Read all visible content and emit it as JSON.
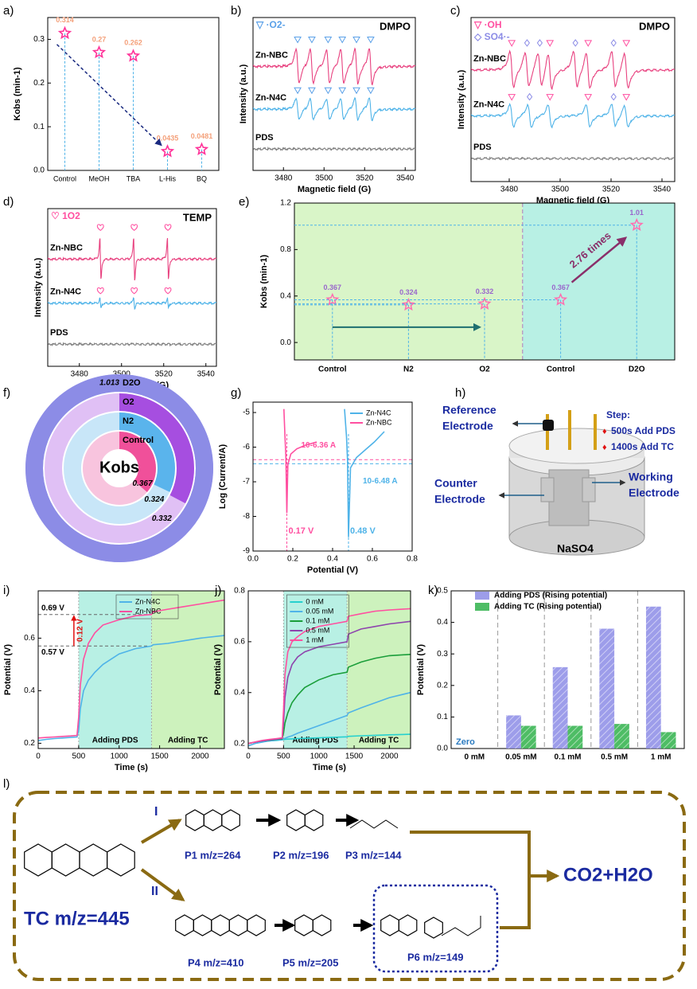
{
  "chart_data": [
    {
      "panel": "a)",
      "type": "scatter",
      "ylabel": "Kobs (min-1)",
      "categories": [
        "Control",
        "MeOH",
        "TBA",
        "L-His",
        "BQ"
      ],
      "values": [
        0.314,
        0.27,
        0.262,
        0.0435,
        0.0481
      ],
      "color": "#ff3399",
      "label_color": "#f4a07a",
      "ylim": [
        0,
        0.35
      ],
      "yticks": [
        {
          "value": 0,
          "label": "0.0"
        },
        0.1,
        0.2,
        0.3
      ]
    },
    {
      "panel": "b)",
      "type": "epr",
      "legend": [
        "▽ ·O2-"
      ],
      "tag": "DMPO",
      "marker": "triangle",
      "marker_color": "#5aa0e8",
      "xlabel": "Magnetic field (G)",
      "ylabel": "Intensity (a.u.)",
      "xlim": [
        3465,
        3545
      ],
      "xticks": [
        3480,
        3500,
        3520,
        3540
      ],
      "series": [
        {
          "name": "Zn-NBC",
          "color": "#e8417f",
          "peaks": [
            3487,
            3494,
            3502,
            3509,
            3516,
            3523
          ]
        },
        {
          "name": "Zn-N4C",
          "color": "#4fb3e8",
          "peaks": [
            3487,
            3494,
            3502,
            3509,
            3516,
            3523
          ]
        },
        {
          "name": "PDS",
          "color": "#808080",
          "peaks": []
        }
      ]
    },
    {
      "panel": "c)",
      "type": "epr",
      "legend": [
        "▽ ·OH",
        "◇ SO4·-"
      ],
      "tag": "DMPO",
      "marker": "triangle",
      "marker_color": "#ff4fa0",
      "marker2_color": "#8c8ce6",
      "xlabel": "Magnetic field (G)",
      "ylabel": "Intensity (a.u.)",
      "xlim": [
        3465,
        3545
      ],
      "xticks": [
        3480,
        3500,
        3520,
        3540
      ],
      "series": [
        {
          "name": "Zn-NBC",
          "color": "#e8417f",
          "peaks": [
            3481,
            3496,
            3511,
            3526
          ],
          "peaks2": [
            3487,
            3492,
            3506,
            3521
          ]
        },
        {
          "name": "Zn-N4C",
          "color": "#4fb3e8",
          "peaks": [
            3481,
            3496,
            3511,
            3526
          ],
          "peaks2": [
            3488,
            3521
          ]
        },
        {
          "name": "PDS",
          "color": "#808080",
          "peaks": [],
          "peaks2": []
        }
      ]
    },
    {
      "panel": "d)",
      "type": "epr",
      "legend": [
        "♡ 1O2"
      ],
      "tag": "TEMP",
      "marker": "heart",
      "marker_color": "#ff4fa0",
      "xlabel": "Magnetic field (G)",
      "ylabel": "Intensity (a.u.)",
      "xlim": [
        3465,
        3545
      ],
      "xticks": [
        3480,
        3500,
        3520,
        3540
      ],
      "series": [
        {
          "name": "Zn-NBC",
          "color": "#e8417f",
          "peaks": [
            3490,
            3506,
            3522
          ]
        },
        {
          "name": "Zn-N4C",
          "color": "#4fb3e8",
          "peaks": [
            3490,
            3506,
            3522
          ]
        },
        {
          "name": "PDS",
          "color": "#808080",
          "peaks": []
        }
      ]
    },
    {
      "panel": "e)",
      "type": "stars",
      "ylabel": "Kobs (min-1)",
      "categories": [
        "Control",
        "N2",
        "O2",
        "Control",
        "D2O"
      ],
      "values": [
        0.367,
        0.324,
        0.332,
        0.367,
        1.01
      ],
      "color": "#ff6fb0",
      "label_color": "#9966cc",
      "ylim": [
        -0.15,
        1.2
      ],
      "yticks": [
        {
          "value": 0,
          "label": "0.0"
        },
        0.4,
        0.8,
        1.2
      ],
      "annotation": "2.76 times"
    },
    {
      "panel": "f)",
      "type": "rings",
      "center": "Kobs",
      "categories": [
        "D2O",
        "O2",
        "N2",
        "Control"
      ],
      "values": [
        1.013,
        0.332,
        0.324,
        0.367
      ],
      "colors": [
        "#8c8ce6",
        "#a64ee0",
        "#5ab4ec",
        "#f0509a"
      ],
      "track_colors": [
        "#b9b9f2",
        "#e0c0f5",
        "#c8e6f8",
        "#f8c4de"
      ]
    },
    {
      "panel": "g)",
      "type": "line",
      "xlabel": "Potential (V)",
      "ylabel": "Log (Current/A)",
      "xlim": [
        0,
        0.8
      ],
      "xticks": [
        {
          "value": 0,
          "label": "0.0"
        },
        0.2,
        0.4,
        0.6,
        0.8
      ],
      "ylim": [
        -9,
        -4.7
      ],
      "yticks": [
        -9,
        -8,
        -7,
        -6,
        -5
      ],
      "legend": "top-right",
      "series": [
        {
          "name": "Zn-N4C",
          "color": "#4fb3e8",
          "x": [
            0.46,
            0.47,
            0.475,
            0.48,
            0.49,
            0.52,
            0.56,
            0.61,
            0.66
          ],
          "values": [
            -4.9,
            -5.7,
            -6.4,
            -8.6,
            -6.6,
            -6.3,
            -6.1,
            -5.85,
            -5.55
          ]
        },
        {
          "name": "Zn-NBC",
          "color": "#ff4fa0",
          "x": [
            0.155,
            0.16,
            0.165,
            0.17,
            0.175,
            0.19,
            0.22,
            0.26,
            0.32
          ],
          "values": [
            -4.9,
            -5.6,
            -6.3,
            -7.9,
            -6.5,
            -6.2,
            -6.05,
            -5.95,
            -5.85
          ]
        }
      ],
      "hlines": [
        {
          "value": -6.36,
          "label": "10-6.36 A",
          "color": "#ff4fa0"
        },
        {
          "value": -6.48,
          "label": "10-6.48 A",
          "color": "#4fb3e8"
        }
      ],
      "vlines": [
        {
          "value": 0.17,
          "label": "0.17 V",
          "color": "#ff4fa0"
        },
        {
          "value": 0.48,
          "label": "0.48 V",
          "color": "#4fb3e8"
        }
      ]
    },
    {
      "panel": "i)",
      "type": "line",
      "xlabel": "Time (s)",
      "ylabel": "Potential (V)",
      "xlim": [
        0,
        2300
      ],
      "xticks": [
        0,
        500,
        1000,
        1500,
        2000
      ],
      "ylim": [
        0.18,
        0.78
      ],
      "yticks": [
        0.2,
        0.4,
        0.6
      ],
      "legend": "top-center",
      "x": [
        0,
        100,
        200,
        300,
        400,
        480,
        500,
        520,
        560,
        620,
        700,
        800,
        1000,
        1200,
        1400,
        1420,
        1600,
        1800,
        2000,
        2300
      ],
      "regions": [
        {
          "start": 500,
          "end": 1400,
          "label": "Adding PDS",
          "color": "#b8f0e4"
        },
        {
          "start": 1400,
          "end": 2300,
          "label": "Adding TC",
          "color": "#cdf2bd"
        }
      ],
      "series": [
        {
          "name": "Zn-N4C",
          "color": "#4fb3e8",
          "values": [
            0.21,
            0.215,
            0.218,
            0.22,
            0.222,
            0.224,
            0.25,
            0.33,
            0.4,
            0.44,
            0.47,
            0.5,
            0.54,
            0.56,
            0.57,
            0.575,
            0.58,
            0.59,
            0.6,
            0.61
          ]
        },
        {
          "name": "Zn-NBC",
          "color": "#ff4fa0",
          "values": [
            0.22,
            0.222,
            0.224,
            0.226,
            0.228,
            0.23,
            0.3,
            0.42,
            0.52,
            0.58,
            0.62,
            0.65,
            0.67,
            0.685,
            0.69,
            0.7,
            0.71,
            0.72,
            0.73,
            0.745
          ]
        }
      ],
      "hlines": [
        {
          "value": 0.69,
          "label": "0.69 V",
          "color": "#666666"
        },
        {
          "value": 0.57,
          "label": "0.57 V",
          "color": "#666666"
        }
      ],
      "diff": {
        "value": 0.12,
        "label": "0.12 V"
      }
    },
    {
      "panel": "j)",
      "type": "line",
      "xlabel": "Time (s)",
      "ylabel": "Potential (V)",
      "xlim": [
        0,
        2300
      ],
      "xticks": [
        0,
        500,
        1000,
        1500,
        2000
      ],
      "ylim": [
        0.18,
        0.8
      ],
      "yticks": [
        0.2,
        0.4,
        0.6,
        0.8
      ],
      "legend": "top-left",
      "x": [
        0,
        100,
        200,
        300,
        400,
        480,
        500,
        520,
        560,
        620,
        700,
        800,
        1000,
        1200,
        1400,
        1420,
        1600,
        1800,
        2000,
        2300
      ],
      "regions": [
        {
          "start": 500,
          "end": 1400,
          "label": "Adding PDS",
          "color": "#b8f0e4"
        },
        {
          "start": 1400,
          "end": 2300,
          "label": "Adding TC",
          "color": "#cdf2bd"
        }
      ],
      "series": [
        {
          "name": "0 mM",
          "color": "#26d0ce",
          "values": [
            0.2,
            0.205,
            0.208,
            0.21,
            0.212,
            0.214,
            0.215,
            0.216,
            0.217,
            0.218,
            0.219,
            0.22,
            0.222,
            0.224,
            0.226,
            0.228,
            0.23,
            0.232,
            0.234,
            0.236
          ]
        },
        {
          "name": "0.05 mM",
          "color": "#4fb3e8",
          "values": [
            0.19,
            0.2,
            0.205,
            0.21,
            0.213,
            0.215,
            0.217,
            0.22,
            0.225,
            0.23,
            0.24,
            0.25,
            0.27,
            0.29,
            0.31,
            0.32,
            0.34,
            0.36,
            0.38,
            0.4
          ]
        },
        {
          "name": "0.1 mM",
          "color": "#1a9e3a",
          "values": [
            0.2,
            0.205,
            0.21,
            0.213,
            0.216,
            0.218,
            0.24,
            0.28,
            0.32,
            0.36,
            0.39,
            0.42,
            0.45,
            0.47,
            0.48,
            0.5,
            0.52,
            0.535,
            0.545,
            0.55
          ]
        },
        {
          "name": "0.5 mM",
          "color": "#8e44ad",
          "values": [
            0.2,
            0.205,
            0.21,
            0.214,
            0.217,
            0.22,
            0.28,
            0.38,
            0.46,
            0.51,
            0.54,
            0.56,
            0.58,
            0.59,
            0.6,
            0.63,
            0.65,
            0.66,
            0.67,
            0.68
          ]
        },
        {
          "name": "1 mM",
          "color": "#ff4fa0",
          "values": [
            0.2,
            0.206,
            0.212,
            0.216,
            0.219,
            0.222,
            0.33,
            0.47,
            0.56,
            0.6,
            0.62,
            0.64,
            0.66,
            0.67,
            0.68,
            0.7,
            0.71,
            0.72,
            0.725,
            0.73
          ]
        }
      ]
    },
    {
      "panel": "k)",
      "type": "bar",
      "ylabel": "Potential (V)",
      "categories": [
        "0 mM",
        "0.05 mM",
        "0.1 mM",
        "0.5 mM",
        "1 mM"
      ],
      "ylim": [
        0,
        0.5
      ],
      "yticks": [
        {
          "value": 0,
          "label": "0.0"
        },
        0.1,
        0.2,
        0.3,
        0.4,
        0.5
      ],
      "legend": "top-left",
      "annotation": "Zero",
      "series": [
        {
          "name": "Adding PDS (Rising potential)",
          "color": "#8c8ce6",
          "values": [
            0,
            0.105,
            0.258,
            0.38,
            0.45
          ]
        },
        {
          "name": "Adding TC (Rising potential)",
          "color": "#2fb14a",
          "values": [
            0,
            0.072,
            0.072,
            0.078,
            0.052
          ]
        }
      ]
    }
  ],
  "schematic": {
    "panel": "h)",
    "reference": [
      "Reference",
      "Electrode"
    ],
    "counter": [
      "Counter",
      "Electrode"
    ],
    "working": [
      "Working",
      "Electrode"
    ],
    "solution": "NaSO4",
    "step_title": "Step:",
    "steps": [
      "500s Add PDS",
      "1400s Add TC"
    ]
  },
  "pathway": {
    "panel": "l)",
    "parent": "TC  m/z=445",
    "routes": [
      "I",
      "II"
    ],
    "products": [
      "P1 m/z=264",
      "P2 m/z=196",
      "P3 m/z=144",
      "P4 m/z=410",
      "P5 m/z=205",
      "P6 m/z=149"
    ],
    "final": "CO2+H2O"
  }
}
